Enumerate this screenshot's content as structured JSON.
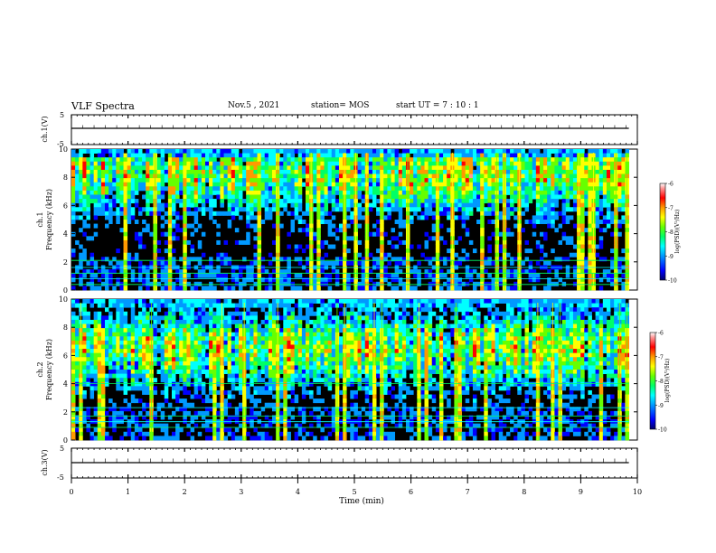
{
  "header": {
    "title": "VLF Spectra",
    "date": "Nov.5 , 2021",
    "station": "station= MOS",
    "start_ut": "start UT = 7 : 10 : 1"
  },
  "colors": {
    "colormap": [
      "#000066",
      "#0000ff",
      "#0099ff",
      "#00ffff",
      "#00ff66",
      "#66ff00",
      "#ffff00",
      "#ff9900",
      "#ff0000",
      "#ff9999",
      "#ffffff"
    ],
    "background": "#000000"
  },
  "chart_data": [
    {
      "type": "line",
      "name": "ch1-waveform",
      "ylabel": "ch.1(V)",
      "ylim": [
        -5,
        5
      ],
      "y_ticks": [
        "5",
        "-5"
      ],
      "x": [
        0,
        10
      ],
      "values": [
        0,
        0
      ]
    },
    {
      "type": "heatmap",
      "name": "ch1-spectrogram",
      "ylabel": "ch.1\nFrequency (kHz)",
      "ylabel_line1": "ch.1",
      "ylabel_line2": "Frequency (kHz)",
      "ylim": [
        0,
        10
      ],
      "y_ticks": [
        "0",
        "2",
        "4",
        "6",
        "8",
        "10"
      ],
      "xlim": [
        0,
        10
      ],
      "x_end_data": 9.85,
      "band_center_khz": 8.3,
      "band_peak_level": 0.72,
      "horizontal_lines_khz": [
        0.4,
        0.8,
        1.2,
        1.6,
        2.1
      ],
      "colorbar": {
        "label": "log(PSD)(V²/Hz)",
        "ticks": [
          "-6",
          "-7",
          "-8",
          "-9",
          "-10"
        ],
        "range": [
          -10,
          -6
        ]
      }
    },
    {
      "type": "heatmap",
      "name": "ch2-spectrogram",
      "ylabel_line1": "ch.2",
      "ylabel_line2": "Frequency (kHz)",
      "ylim": [
        0,
        10
      ],
      "y_ticks": [
        "0",
        "2",
        "4",
        "6",
        "8",
        "10"
      ],
      "xlim": [
        0,
        10
      ],
      "x_end_data": 9.85,
      "band_center_khz": 6.5,
      "band_peak_level": 0.7,
      "horizontal_lines_khz": [
        0.9,
        1.3,
        1.7,
        2.3,
        4.0
      ],
      "colorbar": {
        "label": "log(PSD)(V²/Hz)",
        "ticks": [
          "-6",
          "-7",
          "-8",
          "-9",
          "-10"
        ],
        "range": [
          -10,
          -6
        ]
      }
    },
    {
      "type": "line",
      "name": "ch3-waveform",
      "ylabel": "ch.3(V)",
      "ylim": [
        -5,
        5
      ],
      "y_ticks": [
        "5",
        "-5"
      ],
      "x": [
        0,
        10
      ],
      "values": [
        0,
        0
      ]
    }
  ],
  "x_axis": {
    "label": "Time (min)",
    "ticks": [
      "0",
      "1",
      "2",
      "3",
      "4",
      "5",
      "6",
      "7",
      "8",
      "9",
      "10"
    ],
    "range": [
      0,
      10
    ]
  }
}
